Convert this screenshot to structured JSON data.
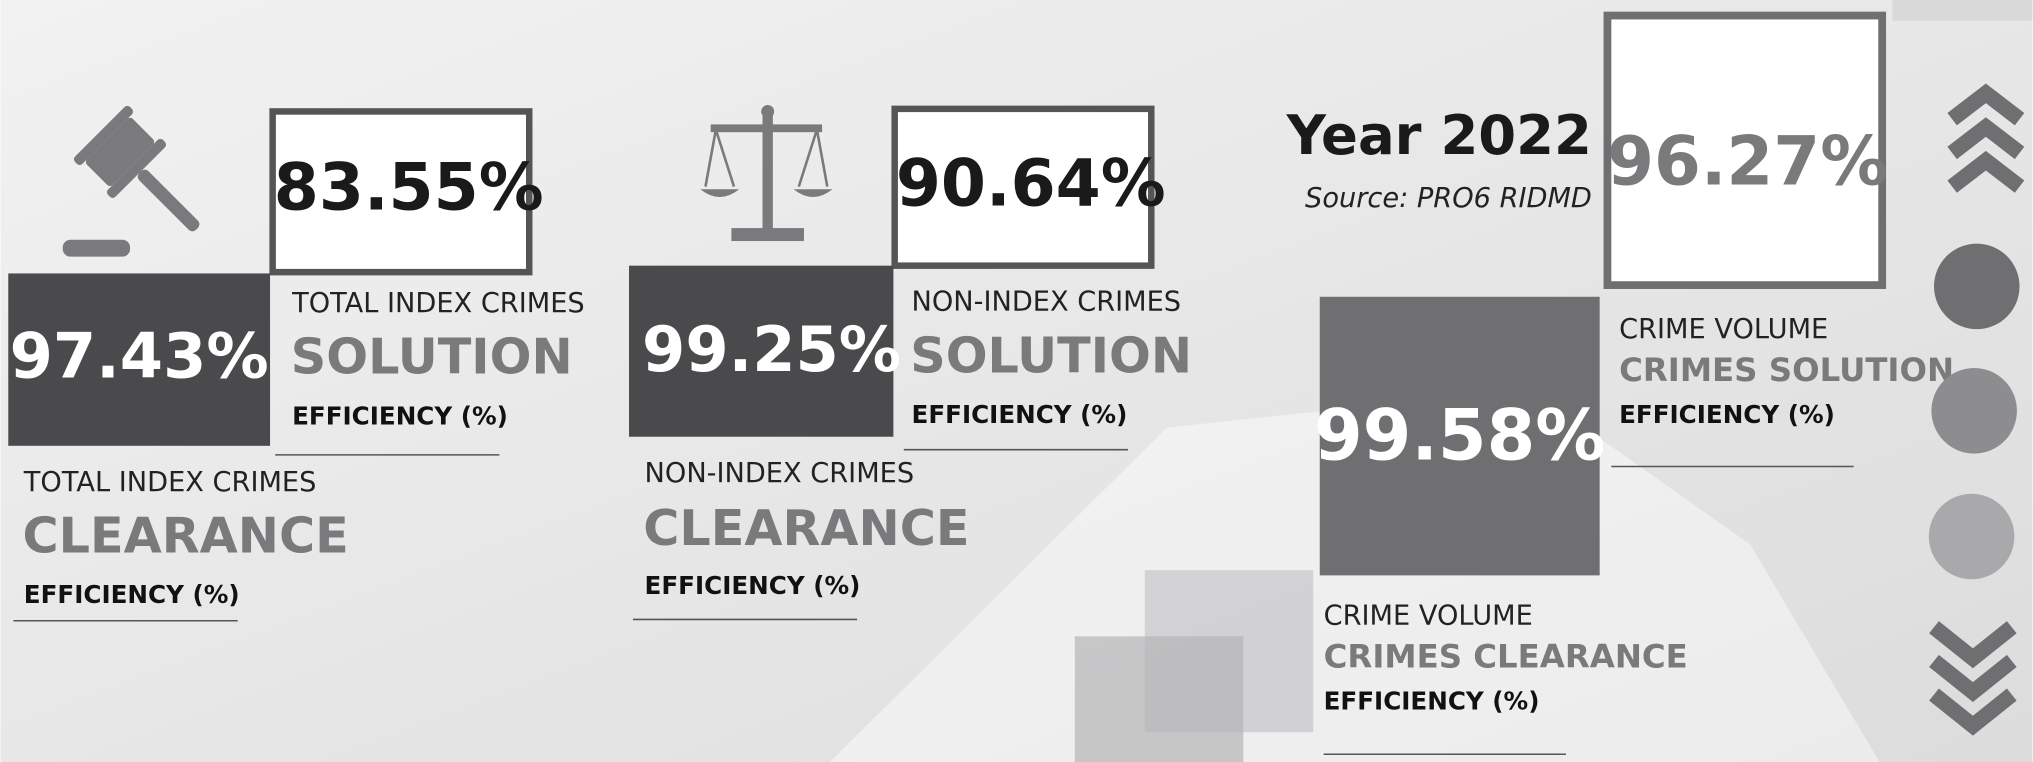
{
  "header": {
    "year": "Year 2022",
    "source": "Source: PRO6 RIDMD"
  },
  "cards": [
    {
      "value": "83.55%",
      "category": "TOTAL INDEX CRIMES",
      "metric": "SOLUTION",
      "unit": "EFFICIENCY (%)"
    },
    {
      "value": "97.43%",
      "category": "TOTAL INDEX CRIMES",
      "metric": "CLEARANCE",
      "unit": "EFFICIENCY (%)"
    },
    {
      "value": "90.64%",
      "category": "NON-INDEX CRIMES",
      "metric": "SOLUTION",
      "unit": "EFFICIENCY (%)"
    },
    {
      "value": "99.25%",
      "category": "NON-INDEX CRIMES",
      "metric": "CLEARANCE",
      "unit": "EFFICIENCY (%)"
    },
    {
      "value": "96.27%",
      "category": "CRIME VOLUME",
      "metric": "CRIMES SOLUTION",
      "unit": "EFFICIENCY (%)"
    },
    {
      "value": "99.58%",
      "category": "CRIME VOLUME",
      "metric": "CRIMES CLEARANCE",
      "unit": "EFFICIENCY (%)"
    }
  ]
}
